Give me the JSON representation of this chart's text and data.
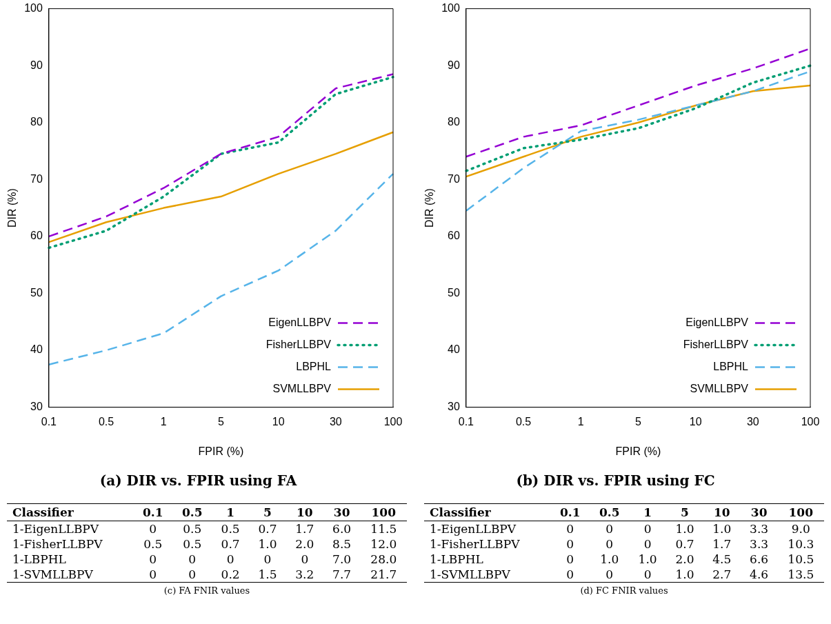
{
  "chart_data": [
    {
      "type": "line",
      "title": "(a) DIR vs. FPIR using FA",
      "xlabel": "FPIR (%)",
      "ylabel": "DIR (%)",
      "categories": [
        "0.1",
        "0.5",
        "1",
        "5",
        "10",
        "30",
        "100"
      ],
      "ylim": [
        30,
        100
      ],
      "yticks": [
        30,
        40,
        50,
        60,
        70,
        80,
        90,
        100
      ],
      "grid": false,
      "legend": "bottom right",
      "marker": "none",
      "series": [
        {
          "name": "EigenLLBPV",
          "color": "#9400d3",
          "line_style": "dashed",
          "values": [
            60,
            63.5,
            68.5,
            74.5,
            77.5,
            86,
            88.5
          ]
        },
        {
          "name": "FisherLLBPV",
          "color": "#009e73",
          "line_style": "dotted",
          "values": [
            58,
            61,
            67,
            74.5,
            76.5,
            85,
            88
          ]
        },
        {
          "name": "LBPHL",
          "color": "#56b4e9",
          "line_style": "dashed",
          "values": [
            37.5,
            40,
            43,
            49.5,
            54,
            61,
            71
          ]
        },
        {
          "name": "SVMLLBPV",
          "color": "#e69f00",
          "line_style": "solid",
          "values": [
            59,
            62.5,
            65,
            67,
            71,
            74.5,
            78.3
          ]
        }
      ]
    },
    {
      "type": "line",
      "title": "(b) DIR vs. FPIR using FC",
      "xlabel": "FPIR (%)",
      "ylabel": "DIR (%)",
      "categories": [
        "0.1",
        "0.5",
        "1",
        "5",
        "10",
        "30",
        "100"
      ],
      "ylim": [
        30,
        100
      ],
      "yticks": [
        30,
        40,
        50,
        60,
        70,
        80,
        90,
        100
      ],
      "grid": false,
      "legend": "bottom right",
      "marker": "none",
      "series": [
        {
          "name": "EigenLLBPV",
          "color": "#9400d3",
          "line_style": "dashed",
          "values": [
            74,
            77.5,
            79.5,
            83,
            86.5,
            89.5,
            93
          ]
        },
        {
          "name": "FisherLLBPV",
          "color": "#009e73",
          "line_style": "dotted",
          "values": [
            71.5,
            75.5,
            77,
            79,
            82.5,
            87,
            90
          ]
        },
        {
          "name": "LBPHL",
          "color": "#56b4e9",
          "line_style": "dashed",
          "values": [
            64.5,
            72,
            78.5,
            80.5,
            83,
            85.5,
            89
          ]
        },
        {
          "name": "SVMLLBPV",
          "color": "#e69f00",
          "line_style": "solid",
          "values": [
            70.5,
            74,
            77.5,
            80,
            83,
            85.5,
            86.5
          ]
        }
      ]
    },
    {
      "type": "heatmap",
      "title": "(c) FA FNIR values",
      "ylabel": "Classifier",
      "categories": [
        "0.1",
        "0.5",
        "1",
        "5",
        "10",
        "30",
        "100"
      ],
      "y_categories": [
        "1-EigenLLBPV",
        "1-FisherLLBPV",
        "1-LBPHL",
        "1-SVMLLBPV"
      ],
      "cells": [
        [
          0,
          0.5,
          0.5,
          0.7,
          1.7,
          6.0,
          11.5
        ],
        [
          0.5,
          0.5,
          0.7,
          1.0,
          2.0,
          8.5,
          12.0
        ],
        [
          0,
          0,
          0,
          0,
          0,
          7.0,
          28.0
        ],
        [
          0,
          0,
          0.2,
          1.5,
          3.2,
          7.7,
          21.7
        ]
      ],
      "cell_labels": [
        [
          "0",
          "0.5",
          "0.5",
          "0.7",
          "1.7",
          "6.0",
          "11.5"
        ],
        [
          "0.5",
          "0.5",
          "0.7",
          "1.0",
          "2.0",
          "8.5",
          "12.0"
        ],
        [
          "0",
          "0",
          "0",
          "0",
          "0",
          "7.0",
          "28.0"
        ],
        [
          "0",
          "0",
          "0.2",
          "1.5",
          "3.2",
          "7.7",
          "21.7"
        ]
      ]
    },
    {
      "type": "heatmap",
      "title": "(d) FC FNIR values",
      "ylabel": "Classifier",
      "categories": [
        "0.1",
        "0.5",
        "1",
        "5",
        "10",
        "30",
        "100"
      ],
      "y_categories": [
        "1-EigenLLBPV",
        "1-FisherLLBPV",
        "1-LBPHL",
        "1-SVMLLBPV"
      ],
      "cells": [
        [
          0,
          0,
          0,
          1.0,
          1.0,
          3.3,
          9.0
        ],
        [
          0,
          0,
          0,
          0.7,
          1.7,
          3.3,
          10.3
        ],
        [
          0,
          1.0,
          1.0,
          2.0,
          4.5,
          6.6,
          10.5
        ],
        [
          0,
          0,
          0,
          1.0,
          2.7,
          4.6,
          13.5
        ]
      ],
      "cell_labels": [
        [
          "0",
          "0",
          "0",
          "1.0",
          "1.0",
          "3.3",
          "9.0"
        ],
        [
          "0",
          "0",
          "0",
          "0.7",
          "1.7",
          "3.3",
          "10.3"
        ],
        [
          "0",
          "1.0",
          "1.0",
          "2.0",
          "4.5",
          "6.6",
          "10.5"
        ],
        [
          "0",
          "0",
          "0",
          "1.0",
          "2.7",
          "4.6",
          "13.5"
        ]
      ]
    }
  ]
}
